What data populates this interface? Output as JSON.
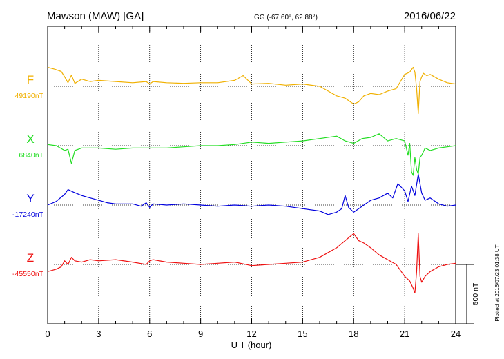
{
  "header": {
    "station": "Mawson (MAW)  [GA]",
    "coords": "GG (-67.60°,  62.88°)",
    "date": "2016/06/22"
  },
  "footer": {
    "plotted": "Plotted at 2016/07/23 01:38 UT"
  },
  "chart_data": {
    "type": "line",
    "xlabel": "U T (hour)",
    "xlim": [
      0,
      24
    ],
    "xticks": [
      "0",
      "3",
      "6",
      "9",
      "12",
      "15",
      "18",
      "21",
      "24"
    ],
    "scale_label": "500 nT",
    "scale_nT": 500,
    "series": [
      {
        "name": "F",
        "reference": "49190nT",
        "color": "#f0b000",
        "x": [
          0,
          0.4,
          0.8,
          1.0,
          1.2,
          1.4,
          1.6,
          2.0,
          2.5,
          3.0,
          4.0,
          5.0,
          5.8,
          6.0,
          6.2,
          7.0,
          8.0,
          9.0,
          10.0,
          11.0,
          11.5,
          12.0,
          13.0,
          14.0,
          15.0,
          16.0,
          16.5,
          17.0,
          17.5,
          18.0,
          18.3,
          18.6,
          19.0,
          19.5,
          20.0,
          20.5,
          21.0,
          21.3,
          21.5,
          21.6,
          21.7,
          21.8,
          21.9,
          22.0,
          22.1,
          22.3,
          22.5,
          23.0,
          23.5,
          24.0
        ],
        "y": [
          160,
          145,
          125,
          80,
          30,
          95,
          25,
          60,
          40,
          50,
          40,
          30,
          40,
          20,
          40,
          30,
          25,
          30,
          30,
          50,
          90,
          20,
          25,
          10,
          20,
          0,
          -40,
          -80,
          -100,
          -150,
          -130,
          -80,
          -60,
          -70,
          -40,
          -20,
          100,
          120,
          160,
          120,
          -20,
          -230,
          40,
          80,
          110,
          90,
          100,
          60,
          30,
          20
        ]
      },
      {
        "name": "X",
        "reference": "6840nT",
        "color": "#22dd22",
        "x": [
          0,
          0.5,
          1.0,
          1.2,
          1.4,
          1.6,
          2.0,
          3.0,
          4.0,
          5.0,
          6.0,
          7.0,
          8.0,
          9.0,
          10.0,
          11.0,
          12.0,
          13.0,
          14.0,
          15.0,
          16.0,
          17.0,
          17.5,
          18.0,
          18.5,
          19.0,
          19.5,
          20.0,
          20.5,
          21.0,
          21.2,
          21.3,
          21.4,
          21.5,
          21.6,
          21.7,
          21.8,
          21.9,
          22.0,
          22.2,
          22.5,
          23.0,
          23.5,
          24.0
        ],
        "y": [
          10,
          0,
          -40,
          -30,
          -150,
          -40,
          -20,
          -20,
          -30,
          -20,
          -20,
          -20,
          -10,
          0,
          0,
          10,
          30,
          20,
          30,
          40,
          60,
          80,
          40,
          20,
          60,
          70,
          100,
          40,
          60,
          40,
          -80,
          20,
          -220,
          -250,
          -100,
          -200,
          -240,
          -100,
          -80,
          -20,
          -40,
          -20,
          -10,
          0
        ]
      },
      {
        "name": "Y",
        "reference": "-17240nT",
        "color": "#0000dd",
        "x": [
          0,
          0.5,
          1.0,
          1.2,
          1.5,
          2.0,
          2.5,
          3.0,
          3.5,
          4.0,
          5.0,
          5.5,
          5.8,
          6.0,
          6.2,
          7.0,
          8.0,
          9.0,
          10.0,
          11.0,
          12.0,
          13.0,
          14.0,
          15.0,
          16.0,
          16.5,
          17.0,
          17.3,
          17.5,
          17.7,
          18.0,
          18.3,
          18.6,
          19.0,
          19.5,
          20.0,
          20.3,
          20.6,
          21.0,
          21.2,
          21.4,
          21.6,
          21.8,
          22.0,
          22.2,
          22.5,
          23.0,
          23.5,
          24.0
        ],
        "y": [
          0,
          30,
          90,
          130,
          110,
          80,
          60,
          40,
          20,
          10,
          10,
          -10,
          20,
          -20,
          10,
          0,
          10,
          0,
          -10,
          0,
          -10,
          0,
          -10,
          -30,
          -50,
          -80,
          -60,
          -30,
          80,
          -20,
          -60,
          -30,
          0,
          40,
          60,
          100,
          60,
          180,
          120,
          30,
          160,
          80,
          260,
          100,
          40,
          60,
          10,
          -10,
          0
        ]
      },
      {
        "name": "Z",
        "reference": "-45550nT",
        "color": "#ee1111",
        "x": [
          0,
          0.5,
          0.8,
          1.0,
          1.2,
          1.4,
          1.6,
          2.0,
          2.5,
          3.0,
          4.0,
          5.0,
          5.8,
          6.0,
          6.2,
          7.0,
          8.0,
          9.0,
          10.0,
          11.0,
          12.0,
          13.0,
          14.0,
          15.0,
          16.0,
          16.5,
          17.0,
          17.5,
          18.0,
          18.3,
          18.6,
          19.0,
          19.5,
          20.0,
          20.5,
          21.0,
          21.3,
          21.5,
          21.6,
          21.7,
          21.8,
          21.9,
          22.0,
          22.2,
          22.5,
          23.0,
          23.5,
          24.0
        ],
        "y": [
          -60,
          -40,
          -20,
          30,
          0,
          60,
          30,
          20,
          40,
          30,
          40,
          20,
          0,
          30,
          40,
          20,
          10,
          0,
          10,
          20,
          -10,
          0,
          10,
          20,
          60,
          100,
          140,
          200,
          260,
          200,
          180,
          140,
          80,
          40,
          0,
          -100,
          -140,
          -200,
          -240,
          -60,
          260,
          -100,
          -150,
          -100,
          -60,
          -20,
          0,
          10
        ]
      }
    ]
  }
}
